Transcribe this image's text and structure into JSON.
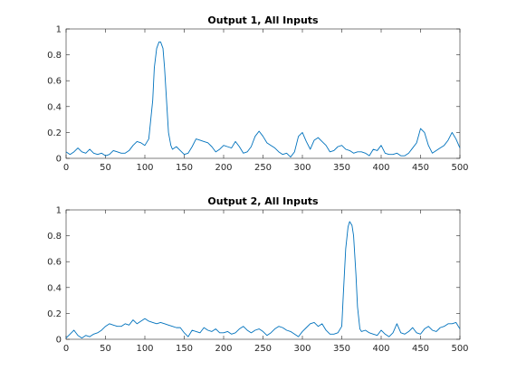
{
  "window": {
    "background": "#ffffff"
  },
  "colors": {
    "axis": "#262626",
    "series": "#0072bd"
  },
  "chart_data": [
    {
      "type": "line",
      "title": "Output 1, All Inputs",
      "xlabel": "",
      "ylabel": "",
      "xlim": [
        0,
        500
      ],
      "ylim": [
        0,
        1
      ],
      "xticks": [
        0,
        50,
        100,
        150,
        200,
        250,
        300,
        350,
        400,
        450,
        500
      ],
      "yticks": [
        0,
        0.2,
        0.4,
        0.6,
        0.8,
        1
      ],
      "ytick_labels": [
        "0",
        "0.2",
        "0.4",
        "0.6",
        "0.8",
        "1"
      ],
      "grid": false,
      "legend": "none",
      "series": [
        {
          "color": "#0072bd",
          "x": [
            0,
            5,
            10,
            15,
            20,
            25,
            30,
            35,
            40,
            45,
            50,
            55,
            60,
            65,
            70,
            75,
            80,
            85,
            90,
            95,
            100,
            105,
            110,
            112,
            115,
            118,
            120,
            123,
            125,
            128,
            130,
            133,
            135,
            140,
            145,
            150,
            155,
            160,
            165,
            170,
            175,
            180,
            185,
            190,
            195,
            200,
            205,
            210,
            215,
            220,
            225,
            230,
            235,
            240,
            245,
            250,
            255,
            260,
            265,
            270,
            275,
            280,
            285,
            290,
            295,
            300,
            305,
            310,
            315,
            320,
            325,
            330,
            335,
            340,
            345,
            350,
            355,
            360,
            365,
            370,
            375,
            380,
            385,
            390,
            395,
            400,
            405,
            410,
            415,
            420,
            425,
            430,
            435,
            440,
            445,
            450,
            455,
            460,
            465,
            470,
            475,
            480,
            485,
            490,
            495,
            500
          ],
          "values": [
            0.05,
            0.03,
            0.05,
            0.08,
            0.05,
            0.04,
            0.07,
            0.04,
            0.03,
            0.04,
            0.02,
            0.03,
            0.06,
            0.05,
            0.04,
            0.04,
            0.06,
            0.1,
            0.13,
            0.12,
            0.1,
            0.15,
            0.45,
            0.7,
            0.85,
            0.9,
            0.9,
            0.85,
            0.7,
            0.4,
            0.2,
            0.1,
            0.07,
            0.09,
            0.06,
            0.03,
            0.04,
            0.09,
            0.15,
            0.14,
            0.13,
            0.12,
            0.09,
            0.05,
            0.07,
            0.1,
            0.09,
            0.08,
            0.13,
            0.09,
            0.04,
            0.05,
            0.09,
            0.17,
            0.21,
            0.17,
            0.12,
            0.1,
            0.08,
            0.05,
            0.03,
            0.04,
            0.01,
            0.05,
            0.17,
            0.2,
            0.13,
            0.07,
            0.14,
            0.16,
            0.13,
            0.1,
            0.05,
            0.06,
            0.09,
            0.1,
            0.07,
            0.06,
            0.04,
            0.05,
            0.05,
            0.04,
            0.02,
            0.07,
            0.06,
            0.1,
            0.04,
            0.03,
            0.03,
            0.04,
            0.02,
            0.02,
            0.04,
            0.08,
            0.12,
            0.23,
            0.2,
            0.1,
            0.04,
            0.06,
            0.08,
            0.1,
            0.14,
            0.2,
            0.15,
            0.08
          ]
        }
      ]
    },
    {
      "type": "line",
      "title": "Output 2, All Inputs",
      "xlabel": "",
      "ylabel": "",
      "xlim": [
        0,
        500
      ],
      "ylim": [
        0,
        1
      ],
      "xticks": [
        0,
        50,
        100,
        150,
        200,
        250,
        300,
        350,
        400,
        450,
        500
      ],
      "yticks": [
        0,
        0.2,
        0.4,
        0.6,
        0.8,
        1
      ],
      "ytick_labels": [
        "0",
        "0.2",
        "0.4",
        "0.6",
        "0.8",
        "1"
      ],
      "grid": false,
      "legend": "none",
      "series": [
        {
          "color": "#0072bd",
          "x": [
            0,
            5,
            10,
            15,
            20,
            25,
            30,
            35,
            40,
            45,
            50,
            55,
            60,
            65,
            70,
            75,
            80,
            85,
            90,
            95,
            100,
            105,
            110,
            115,
            120,
            125,
            130,
            135,
            140,
            145,
            150,
            155,
            160,
            165,
            170,
            175,
            180,
            185,
            190,
            195,
            200,
            205,
            210,
            215,
            220,
            225,
            230,
            235,
            240,
            245,
            250,
            255,
            260,
            265,
            270,
            275,
            280,
            285,
            290,
            295,
            300,
            305,
            310,
            315,
            320,
            325,
            330,
            335,
            340,
            345,
            350,
            352,
            355,
            358,
            360,
            363,
            365,
            368,
            370,
            373,
            375,
            380,
            385,
            390,
            395,
            400,
            405,
            410,
            415,
            420,
            425,
            430,
            435,
            440,
            445,
            450,
            455,
            460,
            465,
            470,
            475,
            480,
            485,
            490,
            495,
            500
          ],
          "values": [
            0.01,
            0.04,
            0.07,
            0.03,
            0.01,
            0.03,
            0.02,
            0.04,
            0.05,
            0.07,
            0.1,
            0.12,
            0.11,
            0.1,
            0.1,
            0.12,
            0.11,
            0.15,
            0.12,
            0.14,
            0.16,
            0.14,
            0.13,
            0.12,
            0.13,
            0.12,
            0.11,
            0.1,
            0.09,
            0.09,
            0.05,
            0.02,
            0.07,
            0.06,
            0.05,
            0.09,
            0.07,
            0.06,
            0.08,
            0.05,
            0.05,
            0.06,
            0.04,
            0.05,
            0.08,
            0.1,
            0.07,
            0.05,
            0.07,
            0.08,
            0.06,
            0.03,
            0.05,
            0.08,
            0.1,
            0.09,
            0.07,
            0.06,
            0.04,
            0.02,
            0.06,
            0.09,
            0.12,
            0.13,
            0.1,
            0.12,
            0.07,
            0.04,
            0.04,
            0.05,
            0.1,
            0.35,
            0.7,
            0.87,
            0.91,
            0.88,
            0.8,
            0.5,
            0.25,
            0.08,
            0.06,
            0.07,
            0.05,
            0.04,
            0.03,
            0.07,
            0.04,
            0.02,
            0.05,
            0.12,
            0.05,
            0.04,
            0.06,
            0.09,
            0.05,
            0.04,
            0.08,
            0.1,
            0.07,
            0.06,
            0.09,
            0.1,
            0.12,
            0.12,
            0.13,
            0.08
          ]
        }
      ]
    }
  ]
}
